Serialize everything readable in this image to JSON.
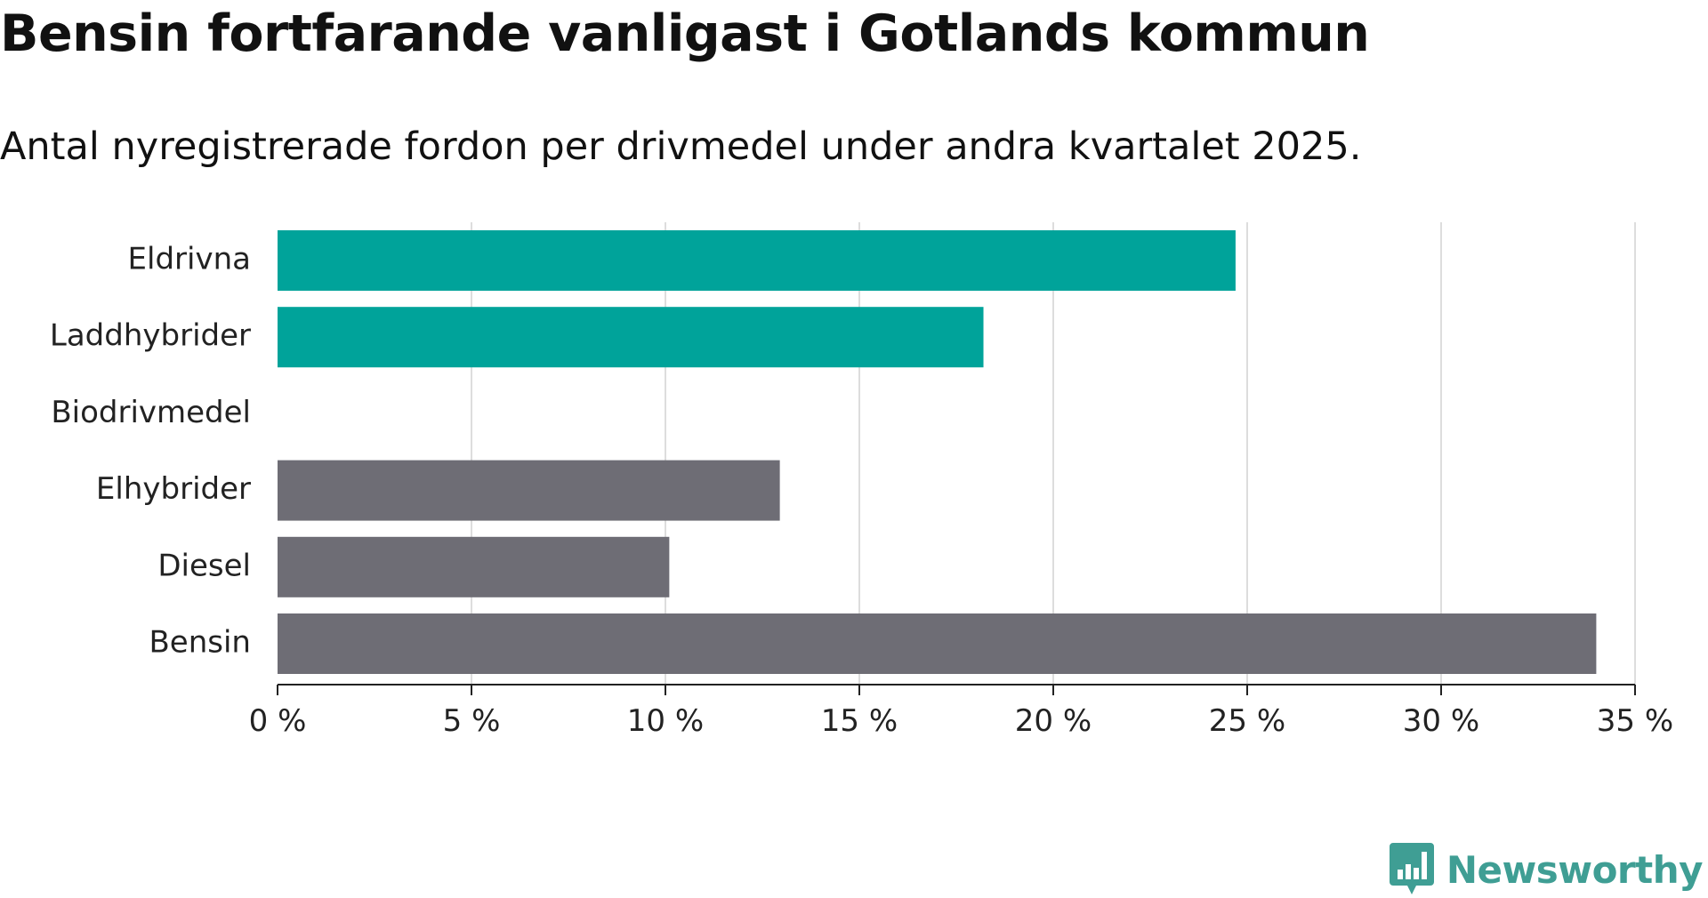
{
  "title": "Bensin fortfarande vanligast i Gotlands kommun",
  "subtitle": "Antal nyregistrerade fordon per drivmedel under andra kvartalet 2025.",
  "brand": {
    "name": "Newsworthy",
    "icon": "newsworthy-logo-icon",
    "color": "#3f9e94"
  },
  "colors": {
    "electrified": "#00a39a",
    "fossil": "#6e6d75",
    "grid": "#dddddd",
    "axis": "#222222"
  },
  "chart_data": {
    "type": "bar",
    "orientation": "horizontal",
    "categories": [
      "Eldrivna",
      "Laddhybrider",
      "Biodrivmedel",
      "Elhybrider",
      "Diesel",
      "Bensin"
    ],
    "values": [
      24.7,
      18.2,
      0,
      12.95,
      10.1,
      34.0
    ],
    "groups": [
      "electrified",
      "electrified",
      "electrified",
      "fossil",
      "fossil",
      "fossil"
    ],
    "xlim": [
      0,
      35
    ],
    "xticks": [
      0,
      5,
      10,
      15,
      20,
      25,
      30,
      35
    ],
    "xtick_labels": [
      "0 %",
      "5 %",
      "10 %",
      "15 %",
      "20 %",
      "25 %",
      "30 %",
      "35 %"
    ],
    "unit": "%",
    "grid": true,
    "legend": "none"
  }
}
